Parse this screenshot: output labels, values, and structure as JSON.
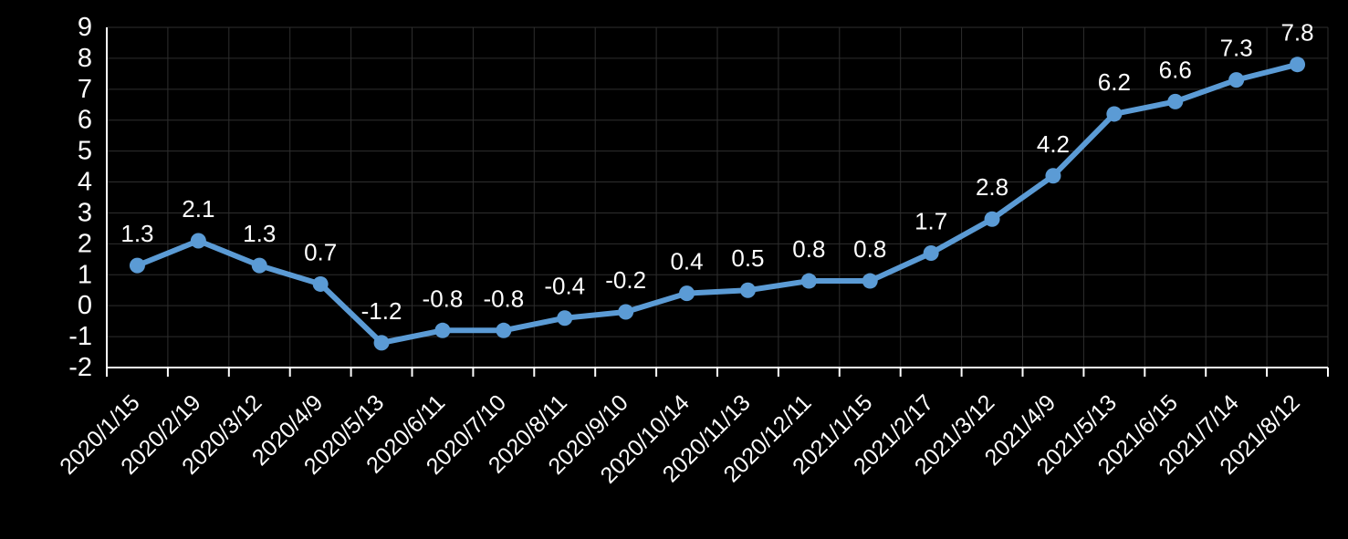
{
  "chart_data": {
    "type": "line",
    "title": "",
    "categories": [
      "2020/1/15",
      "2020/2/19",
      "2020/3/12",
      "2020/4/9",
      "2020/5/13",
      "2020/6/11",
      "2020/7/10",
      "2020/8/11",
      "2020/9/10",
      "2020/10/14",
      "2020/11/13",
      "2020/12/11",
      "2021/1/15",
      "2021/2/17",
      "2021/3/12",
      "2021/4/9",
      "2021/5/13",
      "2021/6/15",
      "2021/7/14",
      "2021/8/12"
    ],
    "series": [
      {
        "name": "values",
        "values": [
          1.3,
          2.1,
          1.3,
          0.7,
          -1.2,
          -0.8,
          -0.8,
          -0.4,
          -0.2,
          0.4,
          0.5,
          0.8,
          0.8,
          1.7,
          2.8,
          4.2,
          6.2,
          6.6,
          7.3,
          7.8
        ],
        "labels": [
          "1.3",
          "2.1",
          "1.3",
          "0.7",
          "-1.2",
          "-0.8",
          "-0.8",
          "-0.4",
          "-0.2",
          "0.4",
          "0.5",
          "0.8",
          "0.8",
          "1.7",
          "2.8",
          "4.2",
          "6.2",
          "6.6",
          "7.3",
          "7.8"
        ]
      }
    ],
    "xlabel": "",
    "ylabel": "",
    "ylim": [
      -2,
      9
    ],
    "yticks": [
      9,
      8,
      7,
      6,
      5,
      4,
      3,
      2,
      1,
      0,
      -1,
      -2
    ],
    "grid": true,
    "legend": "none",
    "marker": "circle",
    "x_label_rotation_deg": -45,
    "colors": {
      "line": "#5B9BD5",
      "marker": "#5B9BD5",
      "data_label": "#FFFFFF",
      "axis_text": "#FFFFFF",
      "axis_line": "#FFFFFF",
      "gridline": "#2E2E2E",
      "background": "#000000"
    }
  }
}
